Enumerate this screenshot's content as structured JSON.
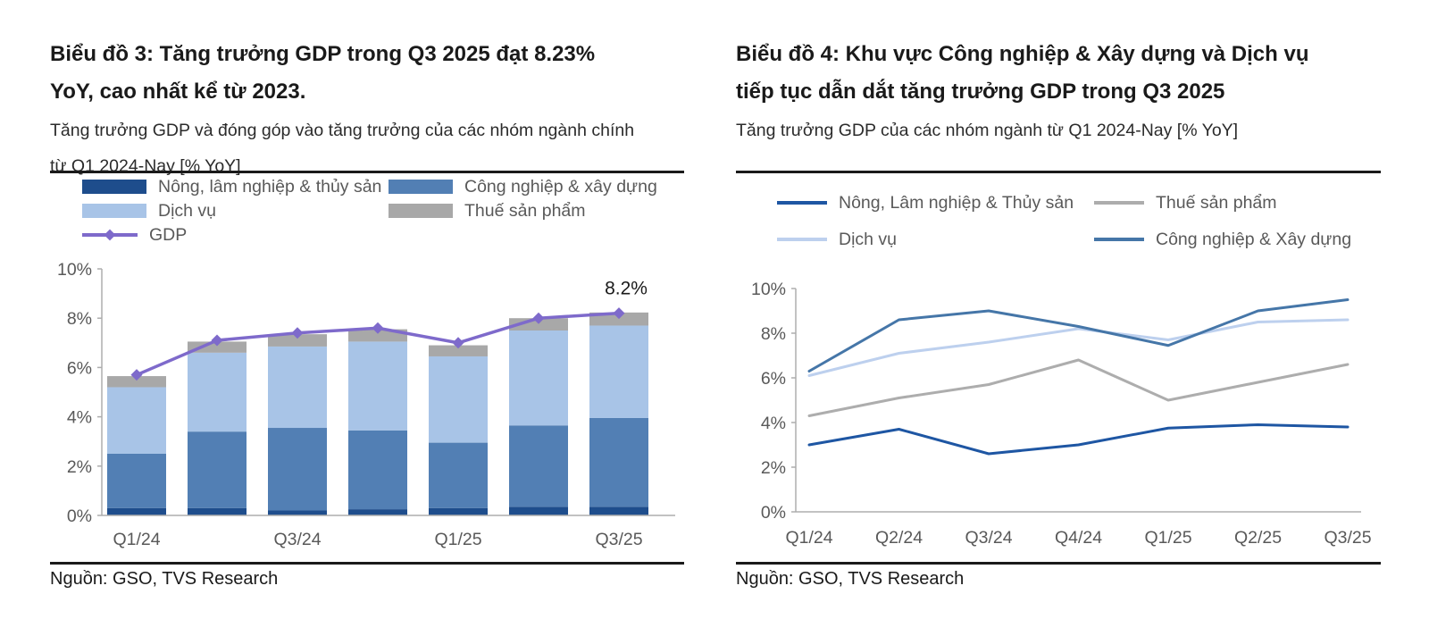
{
  "panels": [
    {
      "name": "chart3",
      "title_lines": [
        "Biểu đồ 3: Tăng trưởng GDP trong Q3 2025 đạt 8.23%",
        "YoY, cao nhất kể từ 2023."
      ],
      "subtitle_lines": [
        "Tăng trưởng GDP và đóng góp vào tăng trưởng của các nhóm ngành chính",
        "từ Q1 2024-Nay [% YoY]"
      ],
      "source": "Nguồn: GSO, TVS Research"
    },
    {
      "name": "chart4",
      "title_lines": [
        "Biểu đồ 4: Khu vực Công nghiệp & Xây dựng và Dịch vụ",
        "tiếp tục dẫn dắt tăng trưởng GDP trong Q3 2025"
      ],
      "subtitle_lines": [
        "Tăng trưởng GDP của các nhóm ngành từ Q1 2024-Nay [% YoY]"
      ],
      "source": "Nguồn: GSO, TVS Research"
    }
  ],
  "chart_data": [
    {
      "type": "bar",
      "stacked": true,
      "title": "Biểu đồ 3: Tăng trưởng GDP trong Q3 2025 đạt 8.23% YoY, cao nhất kể từ 2023.",
      "categories": [
        "Q1/24",
        "Q2/24",
        "Q3/24",
        "Q4/24",
        "Q1/25",
        "Q2/25",
        "Q3/25"
      ],
      "xticks_shown": [
        "Q1/24",
        "Q3/24",
        "Q1/25",
        "Q3/25"
      ],
      "yticks": [
        "0%",
        "2%",
        "4%",
        "6%",
        "8%",
        "10%"
      ],
      "ylim": [
        0,
        10
      ],
      "grid": false,
      "legend_position": "top-left",
      "series": [
        {
          "name": "Nông, lâm nghiệp & thủy sản",
          "color": "#1E4D8C",
          "values": [
            0.3,
            0.3,
            0.2,
            0.25,
            0.3,
            0.35,
            0.35
          ]
        },
        {
          "name": "Công nghiệp & xây dựng",
          "color": "#527FB4",
          "values": [
            2.2,
            3.1,
            3.35,
            3.2,
            2.65,
            3.3,
            3.6
          ]
        },
        {
          "name": "Dịch vụ",
          "color": "#A8C4E7",
          "values": [
            2.7,
            3.2,
            3.3,
            3.6,
            3.5,
            3.85,
            3.75
          ]
        },
        {
          "name": "Thuế sản phẩm",
          "color": "#A8A8A8",
          "values": [
            0.45,
            0.45,
            0.5,
            0.5,
            0.45,
            0.5,
            0.53
          ]
        }
      ],
      "line_overlay": {
        "name": "GDP",
        "color": "#7E6ACB",
        "marker": "diamond",
        "values": [
          5.7,
          7.1,
          7.4,
          7.6,
          7.0,
          8.0,
          8.2
        ]
      },
      "annotation": {
        "text": "8.2%",
        "category": "Q3/25"
      }
    },
    {
      "type": "line",
      "title": "Biểu đồ 4: Khu vực Công nghiệp & Xây dựng và Dịch vụ tiếp tục dẫn dắt tăng trưởng GDP trong Q3 2025",
      "categories": [
        "Q1/24",
        "Q2/24",
        "Q3/24",
        "Q4/24",
        "Q1/25",
        "Q2/25",
        "Q3/25"
      ],
      "yticks": [
        "0%",
        "2%",
        "4%",
        "6%",
        "8%",
        "10%"
      ],
      "ylim": [
        0,
        10
      ],
      "grid": false,
      "legend_position": "top-left",
      "series": [
        {
          "name": "Nông, Lâm nghiệp & Thủy sản",
          "color": "#1E56A3",
          "values": [
            3.0,
            3.7,
            2.6,
            3.0,
            3.75,
            3.9,
            3.8
          ]
        },
        {
          "name": "Thuế sản phẩm",
          "color": "#ADADAD",
          "values": [
            4.3,
            5.1,
            5.7,
            6.8,
            5.0,
            5.8,
            6.6
          ]
        },
        {
          "name": "Dịch vụ",
          "color": "#BDD0EE",
          "values": [
            6.1,
            7.1,
            7.6,
            8.2,
            7.7,
            8.5,
            8.6
          ]
        },
        {
          "name": "Công nghiệp & Xây dựng",
          "color": "#4576A8",
          "values": [
            6.3,
            8.6,
            9.0,
            8.3,
            7.45,
            9.0,
            9.5
          ]
        }
      ]
    }
  ]
}
